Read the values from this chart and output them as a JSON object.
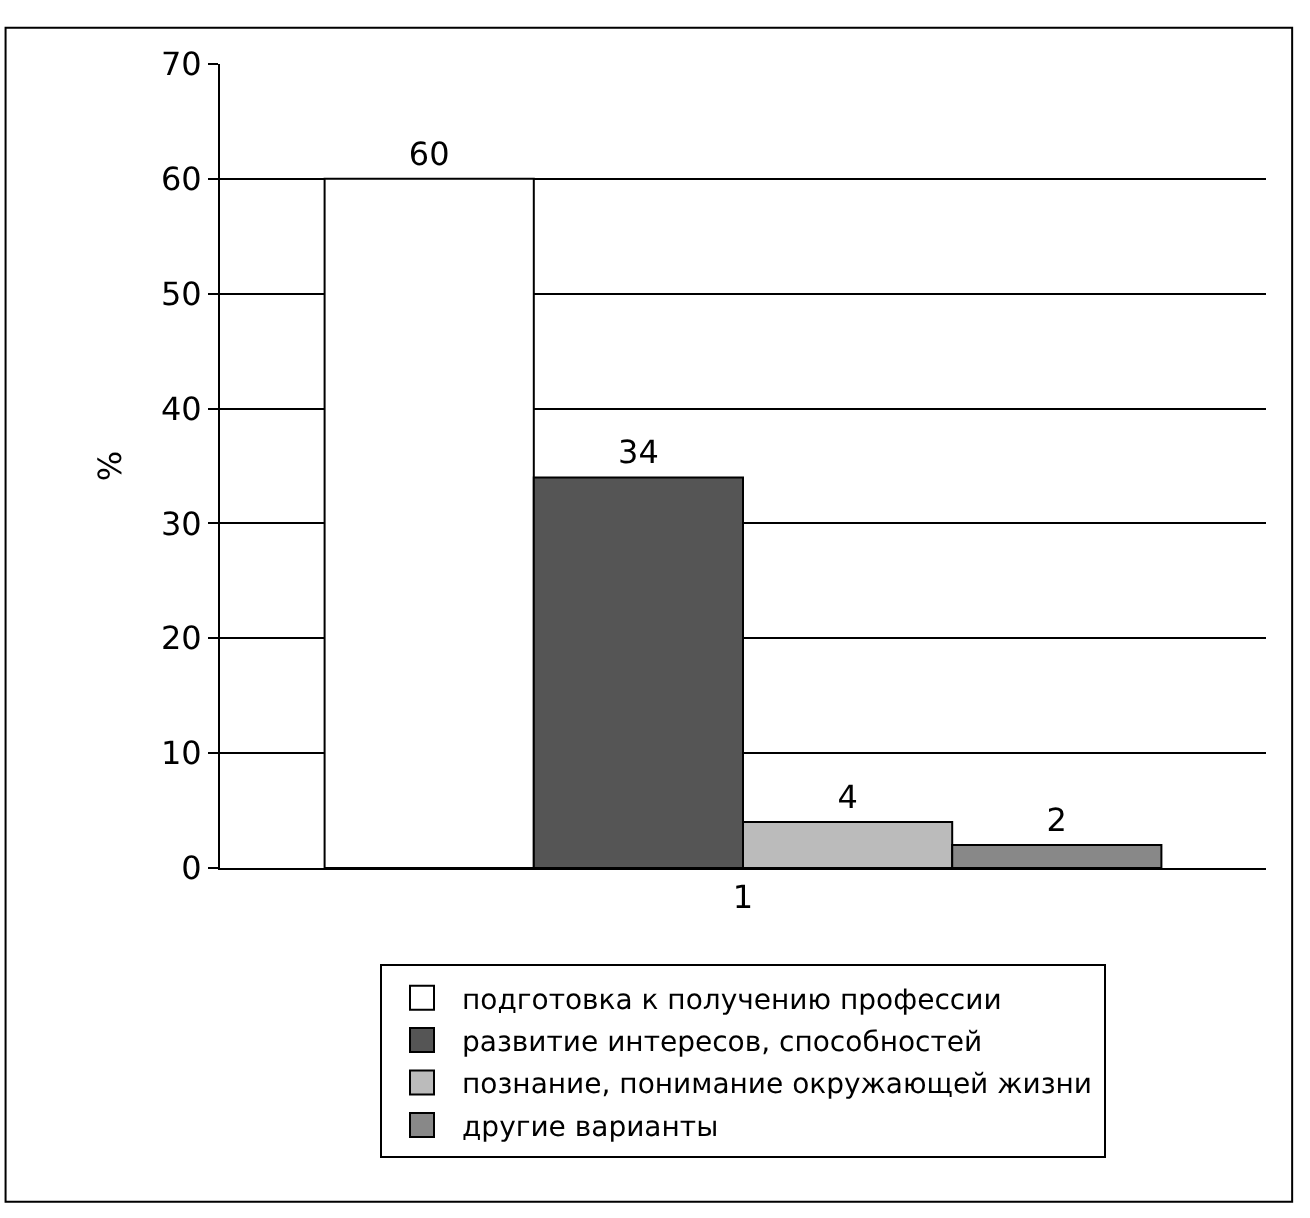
{
  "chart_data": {
    "type": "bar",
    "categories": [
      "1"
    ],
    "ylabel": "%",
    "ylim": [
      0,
      70
    ],
    "yticks": [
      0,
      10,
      20,
      30,
      40,
      50,
      60,
      70
    ],
    "grid": "y",
    "legend": "bottom",
    "data_labels": true,
    "series": [
      {
        "name": "подготовка к получению профессии",
        "color": "#ffffff",
        "values": [
          60
        ]
      },
      {
        "name": "развитие интересов, способностей",
        "color": "#555555",
        "values": [
          34
        ]
      },
      {
        "name": "познание, понимание окружающей жизни",
        "color": "#bbbbbb",
        "values": [
          4
        ]
      },
      {
        "name": "другие варианты",
        "color": "#888888",
        "values": [
          2
        ]
      }
    ]
  }
}
